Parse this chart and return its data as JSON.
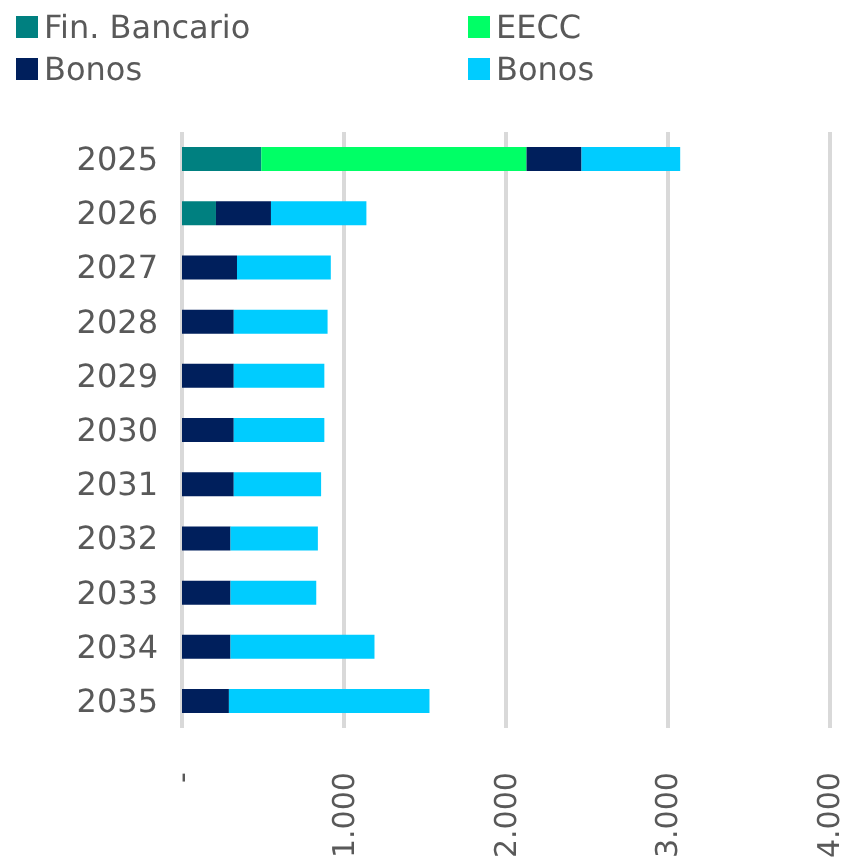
{
  "chart_data": {
    "type": "bar",
    "orientation": "horizontal",
    "stacked": true,
    "categories": [
      "2025",
      "2026",
      "2027",
      "2028",
      "2029",
      "2030",
      "2031",
      "2032",
      "2033",
      "2034",
      "2035"
    ],
    "series": [
      {
        "name": "Fin. Bancario",
        "color": "#008080",
        "values": [
          490,
          210,
          null,
          null,
          null,
          null,
          null,
          null,
          null,
          null,
          null
        ]
      },
      {
        "name": "EECC",
        "color": "#00ff66",
        "values": [
          1640,
          null,
          null,
          null,
          null,
          null,
          null,
          null,
          null,
          null,
          null
        ]
      },
      {
        "name": "Bonos",
        "color": "#001f5c",
        "values": [
          340,
          340,
          340,
          320,
          320,
          320,
          320,
          300,
          300,
          300,
          290
        ]
      },
      {
        "name": "Bonos",
        "color": "#00ccff",
        "values": [
          610,
          590,
          580,
          580,
          560,
          560,
          540,
          540,
          530,
          890,
          1240
        ]
      }
    ],
    "xlim": [
      0,
      4000
    ],
    "xticks": [
      {
        "value": 0,
        "label": "-"
      },
      {
        "value": 1000,
        "label": "1.000"
      },
      {
        "value": 2000,
        "label": "2.000"
      },
      {
        "value": 3000,
        "label": "3.000"
      },
      {
        "value": 4000,
        "label": "4.000"
      }
    ],
    "grid": "x",
    "legend": "top left"
  }
}
